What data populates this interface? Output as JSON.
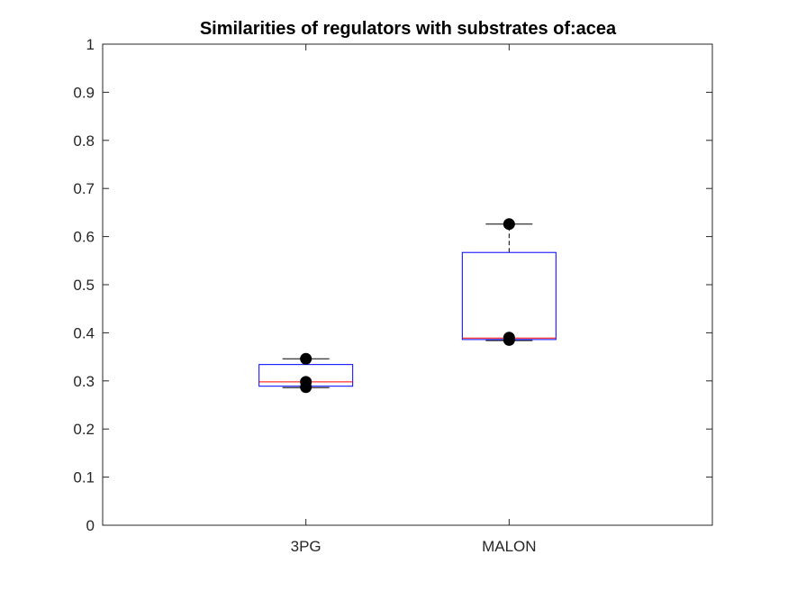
{
  "chart_data": {
    "type": "box",
    "title": "Similarities of regulators with substrates of:acea",
    "xlabel": "",
    "ylabel": "",
    "categories": [
      "3PG",
      "MALON"
    ],
    "ylim": [
      0,
      1
    ],
    "yticks": [
      0,
      0.1,
      0.2,
      0.3,
      0.4,
      0.5,
      0.6,
      0.7,
      0.8,
      0.9,
      1
    ],
    "ytick_labels": [
      "0",
      "0.1",
      "0.2",
      "0.3",
      "0.4",
      "0.5",
      "0.6",
      "0.7",
      "0.8",
      "0.9",
      "1"
    ],
    "grid": false,
    "boxes": [
      {
        "category": "3PG",
        "whisker_low": 0.286,
        "q1": 0.289,
        "median": 0.298,
        "q3": 0.334,
        "whisker_high": 0.346
      },
      {
        "category": "MALON",
        "whisker_low": 0.384,
        "q1": 0.386,
        "median": 0.389,
        "q3": 0.567,
        "whisker_high": 0.626
      }
    ],
    "points": [
      {
        "category": "3PG",
        "values": [
          0.346,
          0.298,
          0.287
        ]
      },
      {
        "category": "MALON",
        "values": [
          0.626,
          0.39,
          0.385
        ]
      }
    ],
    "colors": {
      "box": "#0000ff",
      "median": "#ff0000",
      "whisker": "#000000",
      "points": "#000000",
      "axes": "#262626"
    }
  }
}
